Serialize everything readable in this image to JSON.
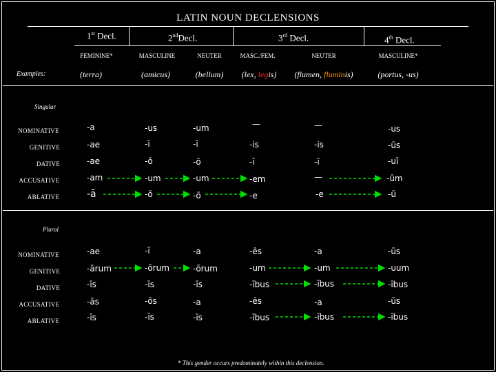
{
  "title": "LATIN NOUN DECLENSIONS",
  "declensions": {
    "d1": {
      "num": "1",
      "sup": "st",
      "label": "Decl."
    },
    "d2": {
      "num": "2",
      "sup": "nd",
      "label": "Decl."
    },
    "d3": {
      "num": "3",
      "sup": "rd",
      "label": "Decl."
    },
    "d4": {
      "num": "4",
      "sup": "th",
      "label": "Decl."
    }
  },
  "genders": [
    "FEMININE*",
    "MASCULINE",
    "NEUTER",
    "MASC./FEM.",
    "NEUTER",
    "MASCULINE*"
  ],
  "examples_label": "Examples:",
  "examples": {
    "terra": "(terra)",
    "amicus": "(amicus)",
    "bellum": "(bellum)",
    "lex_pre": "(lex, ",
    "lex_red": "leg",
    "lex_post": "is)",
    "flumen_pre": "(flumen, ",
    "flumen_orange": "flumin",
    "flumen_post": "is)",
    "portus": "(portus, -us)"
  },
  "sections": {
    "singular": "Singular",
    "plural": "Plural"
  },
  "cases": [
    "NOMINATIVE",
    "GENITIVE",
    "DATIVE",
    "ACCUSATIVE",
    "ABLATIVE"
  ],
  "singular": [
    [
      "-a",
      "-us",
      "-um",
      "—",
      "—",
      "-us"
    ],
    [
      "-ae",
      "-ī",
      "-ī",
      "-is",
      "-is",
      "-ūs"
    ],
    [
      "-ae",
      "-ō",
      "-ō",
      "-ī",
      "-ī",
      "-uī"
    ],
    [
      "-am",
      "-um",
      "-um",
      "-em",
      "—",
      "-ūm"
    ],
    [
      "-ā",
      "-ō",
      "-ō",
      "-e",
      "-e",
      "-ū"
    ]
  ],
  "plural": [
    [
      "-ae",
      "-ī",
      "-a",
      "-ēs",
      "-a",
      "-ūs"
    ],
    [
      "-ārum",
      "-ōrum",
      "-ōrum",
      "-um",
      "-um",
      "-uum"
    ],
    [
      "-īs",
      "-īs",
      "-īs",
      "-ībus",
      "-ībus",
      "-ībus"
    ],
    [
      "-ās",
      "-ōs",
      "-a",
      "-ēs",
      "-a",
      "-ūs"
    ],
    [
      "-īs",
      "-īs",
      "-īs",
      "-ībus",
      "-ībus",
      "-ībus"
    ]
  ],
  "footnote": "* This gender occurs predominately within this declension."
}
